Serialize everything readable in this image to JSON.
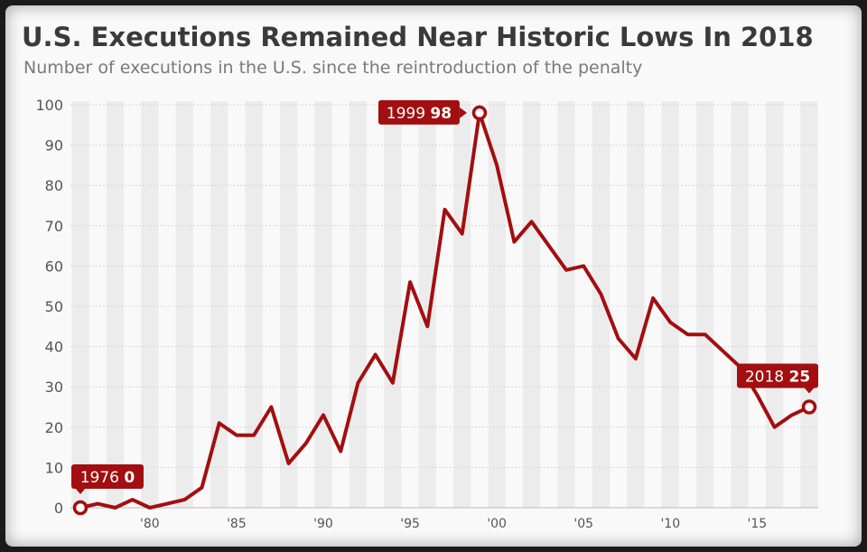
{
  "header": {
    "title": "U.S. Executions Remained Near Historic Lows In 2018",
    "subtitle": "Number of executions in the U.S. since the reintroduction of the penalty"
  },
  "colors": {
    "line": "#a30e10",
    "stripe": "#ececec",
    "background": "#f9f9f9"
  },
  "chart_data": {
    "type": "line",
    "title": "U.S. Executions Remained Near Historic Lows In 2018",
    "xlabel": "",
    "ylabel": "",
    "x": [
      1976,
      1977,
      1978,
      1979,
      1980,
      1981,
      1982,
      1983,
      1984,
      1985,
      1986,
      1987,
      1988,
      1989,
      1990,
      1991,
      1992,
      1993,
      1994,
      1995,
      1996,
      1997,
      1998,
      1999,
      2000,
      2001,
      2002,
      2003,
      2004,
      2005,
      2006,
      2007,
      2008,
      2009,
      2010,
      2011,
      2012,
      2013,
      2014,
      2015,
      2016,
      2017,
      2018
    ],
    "series": [
      {
        "name": "Executions",
        "values": [
          0,
          1,
          0,
          2,
          0,
          1,
          2,
          5,
          21,
          18,
          18,
          25,
          11,
          16,
          23,
          14,
          31,
          38,
          31,
          56,
          45,
          74,
          68,
          98,
          85,
          66,
          71,
          65,
          59,
          60,
          53,
          42,
          37,
          52,
          46,
          43,
          43,
          39,
          35,
          28,
          20,
          23,
          25
        ]
      }
    ],
    "ylim": [
      0,
      100
    ],
    "xlim": [
      1976,
      2018
    ],
    "yticks": [
      0,
      10,
      20,
      30,
      40,
      50,
      60,
      70,
      80,
      90,
      100
    ],
    "xticks": [
      {
        "year": 1980,
        "label": "'80"
      },
      {
        "year": 1985,
        "label": "'85"
      },
      {
        "year": 1990,
        "label": "'90"
      },
      {
        "year": 1995,
        "label": "'95"
      },
      {
        "year": 2000,
        "label": "'00"
      },
      {
        "year": 2005,
        "label": "'05"
      },
      {
        "year": 2010,
        "label": "'10"
      },
      {
        "year": 2015,
        "label": "'15"
      }
    ],
    "annotations": [
      {
        "year": 1976,
        "label": "1976",
        "value": "0",
        "position": "above"
      },
      {
        "year": 1999,
        "label": "1999",
        "value": "98",
        "position": "left"
      },
      {
        "year": 2018,
        "label": "2018",
        "value": "25",
        "position": "above"
      }
    ],
    "grid": true
  }
}
